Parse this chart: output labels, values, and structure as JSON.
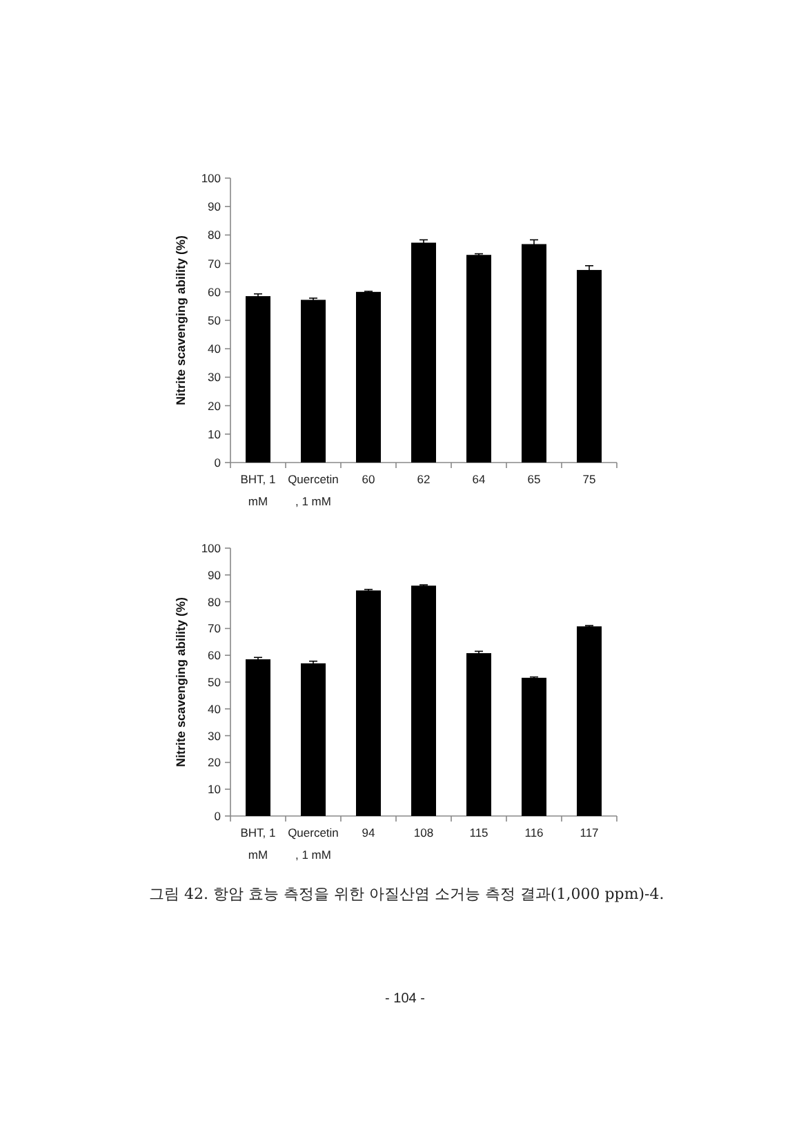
{
  "chart_data": [
    {
      "type": "bar",
      "ylabel": "Nitrite scavenging ability (%)",
      "categories": [
        "BHT, 1 mM",
        "Quercetin , 1 mM",
        "60",
        "62",
        "64",
        "65",
        "75"
      ],
      "values": [
        58.5,
        57.2,
        60,
        77.3,
        73,
        76.8,
        67.7
      ],
      "errors": [
        0.8,
        0.6,
        0.2,
        1,
        0.4,
        1.5,
        1.5
      ],
      "color": "#000000",
      "ylim": [
        0,
        100
      ],
      "yticks": [
        0,
        10,
        20,
        30,
        40,
        50,
        60,
        70,
        80,
        90,
        100
      ]
    },
    {
      "type": "bar",
      "ylabel": "Nitrite scavenging ability (%)",
      "categories": [
        "BHT, 1 mM",
        "Quercetin , 1 mM",
        "94",
        "108",
        "115",
        "116",
        "117"
      ],
      "values": [
        58.5,
        57,
        84.2,
        86,
        60.8,
        51.6,
        70.8
      ],
      "errors": [
        0.7,
        0.8,
        0.4,
        0.3,
        0.7,
        0.3,
        0.3
      ],
      "color": "#000000",
      "ylim": [
        0,
        100
      ],
      "yticks": [
        0,
        10,
        20,
        30,
        40,
        50,
        60,
        70,
        80,
        90,
        100
      ],
      "annotations": [
        "그림 42. 항암 효능 측정을 위한 아질산염 소거능 측정 결과(1,000 ppm)-4.",
        "- 104 -"
      ]
    }
  ]
}
